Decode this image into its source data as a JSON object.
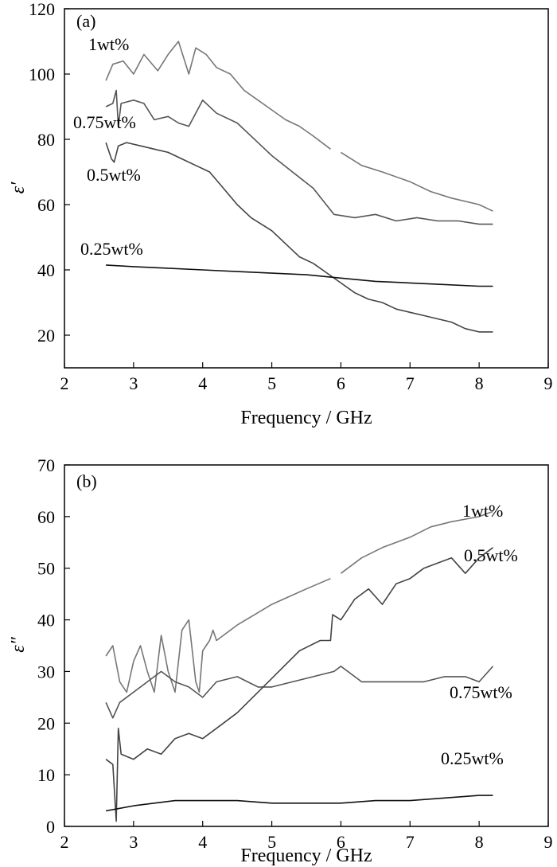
{
  "chart_data": [
    {
      "type": "line",
      "panel_label": "(a)",
      "xlabel": "Frequency / GHz",
      "ylabel": "ε′",
      "xlim": [
        2,
        9
      ],
      "ylim": [
        10,
        120
      ],
      "x_ticks": [
        2,
        3,
        4,
        5,
        6,
        7,
        8,
        9
      ],
      "y_ticks": [
        20,
        40,
        60,
        80,
        100,
        120
      ],
      "grid": false,
      "series": [
        {
          "name": "1wt%",
          "color": "#777777",
          "x": [
            2.6,
            2.7,
            2.85,
            3.0,
            3.15,
            3.35,
            3.5,
            3.65,
            3.8,
            3.9,
            4.05,
            4.2,
            4.4,
            4.6,
            4.8,
            5.0,
            5.2,
            5.4,
            5.6,
            5.85,
            5.88,
            6.0,
            6.3,
            6.6,
            7.0,
            7.3,
            7.6,
            8.0,
            8.2
          ],
          "y": [
            98,
            103,
            104,
            100,
            106,
            101,
            106,
            110,
            100,
            108,
            106,
            102,
            100,
            95,
            92,
            89,
            86,
            84,
            81,
            77,
            null,
            76,
            72,
            70,
            67,
            64,
            62,
            60,
            58
          ]
        },
        {
          "name": "0.75wt%",
          "color": "#555555",
          "x": [
            2.6,
            2.7,
            2.75,
            2.78,
            2.82,
            3.0,
            3.15,
            3.3,
            3.5,
            3.65,
            3.8,
            4.0,
            4.2,
            4.5,
            4.8,
            5.0,
            5.3,
            5.6,
            5.9,
            6.2,
            6.5,
            6.8,
            7.1,
            7.4,
            7.7,
            8.0,
            8.2
          ],
          "y": [
            90,
            91,
            95,
            84,
            91,
            92,
            91,
            86,
            87,
            85,
            84,
            92,
            88,
            85,
            79,
            75,
            70,
            65,
            57,
            56,
            57,
            55,
            56,
            55,
            55,
            54,
            54
          ]
        },
        {
          "name": "0.5wt%",
          "color": "#444444",
          "x": [
            2.6,
            2.68,
            2.72,
            2.78,
            2.9,
            3.1,
            3.3,
            3.5,
            3.7,
            3.9,
            4.1,
            4.3,
            4.5,
            4.7,
            5.0,
            5.2,
            5.4,
            5.6,
            5.8,
            6.0,
            6.2,
            6.4,
            6.6,
            6.8,
            7.0,
            7.2,
            7.4,
            7.6,
            7.8,
            8.0,
            8.2
          ],
          "y": [
            79,
            74,
            73,
            78,
            79,
            78,
            77,
            76,
            74,
            72,
            70,
            65,
            60,
            56,
            52,
            48,
            44,
            42,
            39,
            36,
            33,
            31,
            30,
            28,
            27,
            26,
            25,
            24,
            22,
            21,
            21
          ]
        },
        {
          "name": "0.25wt%",
          "color": "#111111",
          "x": [
            2.6,
            3.0,
            3.5,
            4.0,
            4.5,
            5.0,
            5.5,
            6.0,
            6.5,
            7.0,
            7.5,
            8.0,
            8.2
          ],
          "y": [
            41.5,
            41,
            40.5,
            40,
            39.5,
            39,
            38.5,
            37.5,
            36.5,
            36,
            35.5,
            35,
            35
          ]
        }
      ],
      "labels": [
        {
          "text": "1wt%",
          "series": "1wt%"
        },
        {
          "text": "0.75wt%",
          "series": "0.75wt%"
        },
        {
          "text": "0.5wt%",
          "series": "0.5wt%"
        },
        {
          "text": "0.25wt%",
          "series": "0.25wt%"
        }
      ]
    },
    {
      "type": "line",
      "panel_label": "(b)",
      "xlabel": "Frequency / GHz",
      "ylabel": "ε″",
      "xlim": [
        2,
        9
      ],
      "ylim": [
        0,
        70
      ],
      "x_ticks": [
        2,
        3,
        4,
        5,
        6,
        7,
        8,
        9
      ],
      "y_ticks": [
        0,
        10,
        20,
        30,
        40,
        50,
        60,
        70
      ],
      "grid": false,
      "series": [
        {
          "name": "1wt%",
          "color": "#777777",
          "x": [
            2.6,
            2.7,
            2.8,
            2.9,
            3.0,
            3.1,
            3.2,
            3.3,
            3.4,
            3.5,
            3.6,
            3.7,
            3.8,
            3.9,
            3.95,
            4.0,
            4.1,
            4.15,
            4.2,
            4.5,
            5.0,
            5.5,
            5.85,
            5.9,
            6.0,
            6.3,
            6.6,
            7.0,
            7.3,
            7.6,
            8.0,
            8.2
          ],
          "y": [
            33,
            35,
            28,
            26,
            32,
            35,
            30,
            26,
            37,
            30,
            26,
            38,
            40,
            28,
            26,
            34,
            36,
            38,
            36,
            39,
            43,
            46,
            48,
            null,
            49,
            52,
            54,
            56,
            58,
            59,
            60,
            61
          ]
        },
        {
          "name": "0.75wt%",
          "color": "#555555",
          "x": [
            2.6,
            2.7,
            2.8,
            3.0,
            3.2,
            3.4,
            3.6,
            3.8,
            4.0,
            4.2,
            4.5,
            4.8,
            5.0,
            5.3,
            5.6,
            5.9,
            6.0,
            6.1,
            6.3,
            6.6,
            6.9,
            7.2,
            7.5,
            7.8,
            8.0,
            8.2
          ],
          "y": [
            24,
            21,
            24,
            26,
            28,
            30,
            28,
            27,
            25,
            28,
            29,
            27,
            27,
            28,
            29,
            30,
            31,
            30,
            28,
            28,
            28,
            28,
            29,
            29,
            28,
            31
          ]
        },
        {
          "name": "0.5wt%",
          "color": "#444444",
          "x": [
            2.6,
            2.7,
            2.75,
            2.78,
            2.82,
            3.0,
            3.2,
            3.4,
            3.6,
            3.8,
            4.0,
            4.2,
            4.5,
            4.8,
            5.1,
            5.4,
            5.7,
            5.85,
            5.88,
            6.0,
            6.2,
            6.4,
            6.6,
            6.8,
            7.0,
            7.2,
            7.4,
            7.6,
            7.8,
            8.0,
            8.2
          ],
          "y": [
            13,
            12,
            1,
            19,
            14,
            13,
            15,
            14,
            17,
            18,
            17,
            19,
            22,
            26,
            30,
            34,
            36,
            36,
            41,
            40,
            44,
            46,
            43,
            47,
            48,
            50,
            51,
            52,
            49,
            52,
            54
          ]
        },
        {
          "name": "0.25wt%",
          "color": "#111111",
          "x": [
            2.6,
            2.8,
            3.0,
            3.3,
            3.6,
            4.0,
            4.5,
            5.0,
            5.5,
            6.0,
            6.5,
            7.0,
            7.5,
            8.0,
            8.2
          ],
          "y": [
            3,
            3.5,
            4,
            4.5,
            5,
            5,
            5,
            4.5,
            4.5,
            4.5,
            5,
            5,
            5.5,
            6,
            6
          ]
        }
      ],
      "labels": [
        {
          "text": "1wt%",
          "series": "1wt%"
        },
        {
          "text": "0.5wt%",
          "series": "0.5wt%"
        },
        {
          "text": "0.75wt%",
          "series": "0.75wt%"
        },
        {
          "text": "0.25wt%",
          "series": "0.25wt%"
        }
      ]
    }
  ]
}
